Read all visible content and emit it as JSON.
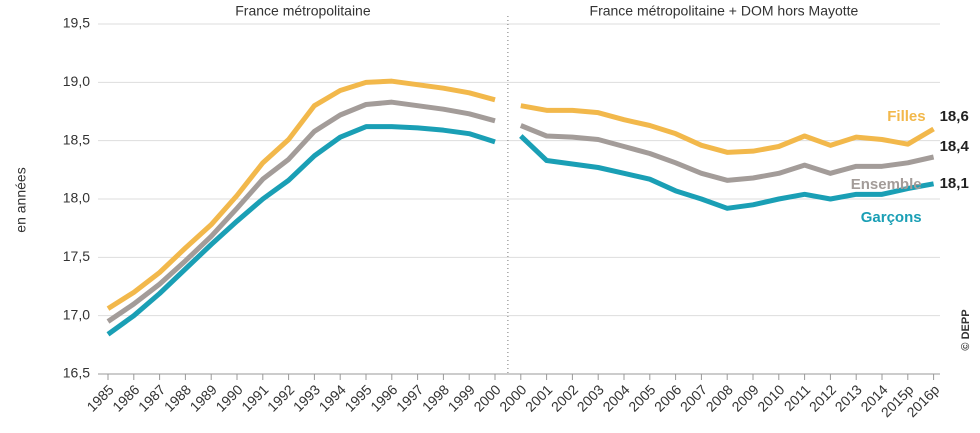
{
  "chart_data": {
    "type": "line",
    "ylabel": "en années",
    "credit": "© DEPP",
    "ylim": [
      16.5,
      19.5
    ],
    "yticks": [
      {
        "value": 16.5,
        "label": "16,5"
      },
      {
        "value": 17,
        "label": "17,0"
      },
      {
        "value": 17.5,
        "label": "17,5"
      },
      {
        "value": 18,
        "label": "18,0"
      },
      {
        "value": 18.5,
        "label": "18,5"
      },
      {
        "value": 19,
        "label": "19,0"
      },
      {
        "value": 19.5,
        "label": "19,5"
      }
    ],
    "grid": true,
    "series": [
      {
        "name": "Filles",
        "color": "#f2b84b",
        "end_label": "18,6"
      },
      {
        "name": "Ensemble",
        "color": "#a39c99",
        "end_label": "18,4"
      },
      {
        "name": "Garçons",
        "color": "#1a9fb5",
        "end_label": "18,1"
      }
    ],
    "panels": [
      {
        "title": "France métropolitaine",
        "categories": [
          "1985",
          "1986",
          "1987",
          "1988",
          "1989",
          "1990",
          "1991",
          "1992",
          "1993",
          "1994",
          "1995",
          "1996",
          "1997",
          "1998",
          "1999",
          "2000"
        ],
        "series": [
          {
            "values": [
              17.06,
              17.2,
              17.37,
              17.58,
              17.78,
              18.03,
              18.31,
              18.51,
              18.8,
              18.93,
              19.0,
              19.01,
              18.98,
              18.95,
              18.91,
              18.85
            ]
          },
          {
            "values": [
              16.95,
              17.1,
              17.27,
              17.47,
              17.68,
              17.92,
              18.17,
              18.34,
              18.58,
              18.72,
              18.81,
              18.83,
              18.8,
              18.77,
              18.73,
              18.67
            ]
          },
          {
            "values": [
              16.84,
              17.0,
              17.19,
              17.4,
              17.61,
              17.81,
              18.0,
              18.16,
              18.37,
              18.53,
              18.62,
              18.62,
              18.61,
              18.59,
              18.56,
              18.49
            ]
          }
        ]
      },
      {
        "title": "France métropolitaine + DOM hors Mayotte",
        "categories": [
          "2000",
          "2001",
          "2002",
          "2003",
          "2004",
          "2005",
          "2006",
          "2007",
          "2008",
          "2009",
          "2010",
          "2011",
          "2012",
          "2013",
          "2014",
          "2015p",
          "2016p"
        ],
        "series": [
          {
            "values": [
              18.8,
              18.76,
              18.76,
              18.74,
              18.68,
              18.63,
              18.56,
              18.46,
              18.4,
              18.41,
              18.45,
              18.54,
              18.46,
              18.53,
              18.51,
              18.47,
              18.6
            ]
          },
          {
            "values": [
              18.63,
              18.54,
              18.53,
              18.51,
              18.45,
              18.39,
              18.31,
              18.22,
              18.16,
              18.18,
              18.22,
              18.29,
              18.22,
              18.28,
              18.28,
              18.31,
              18.36
            ]
          },
          {
            "values": [
              18.54,
              18.33,
              18.3,
              18.27,
              18.22,
              18.17,
              18.07,
              18.0,
              17.92,
              17.95,
              18.0,
              18.04,
              18.0,
              18.04,
              18.04,
              18.09,
              18.13
            ]
          }
        ]
      }
    ]
  }
}
